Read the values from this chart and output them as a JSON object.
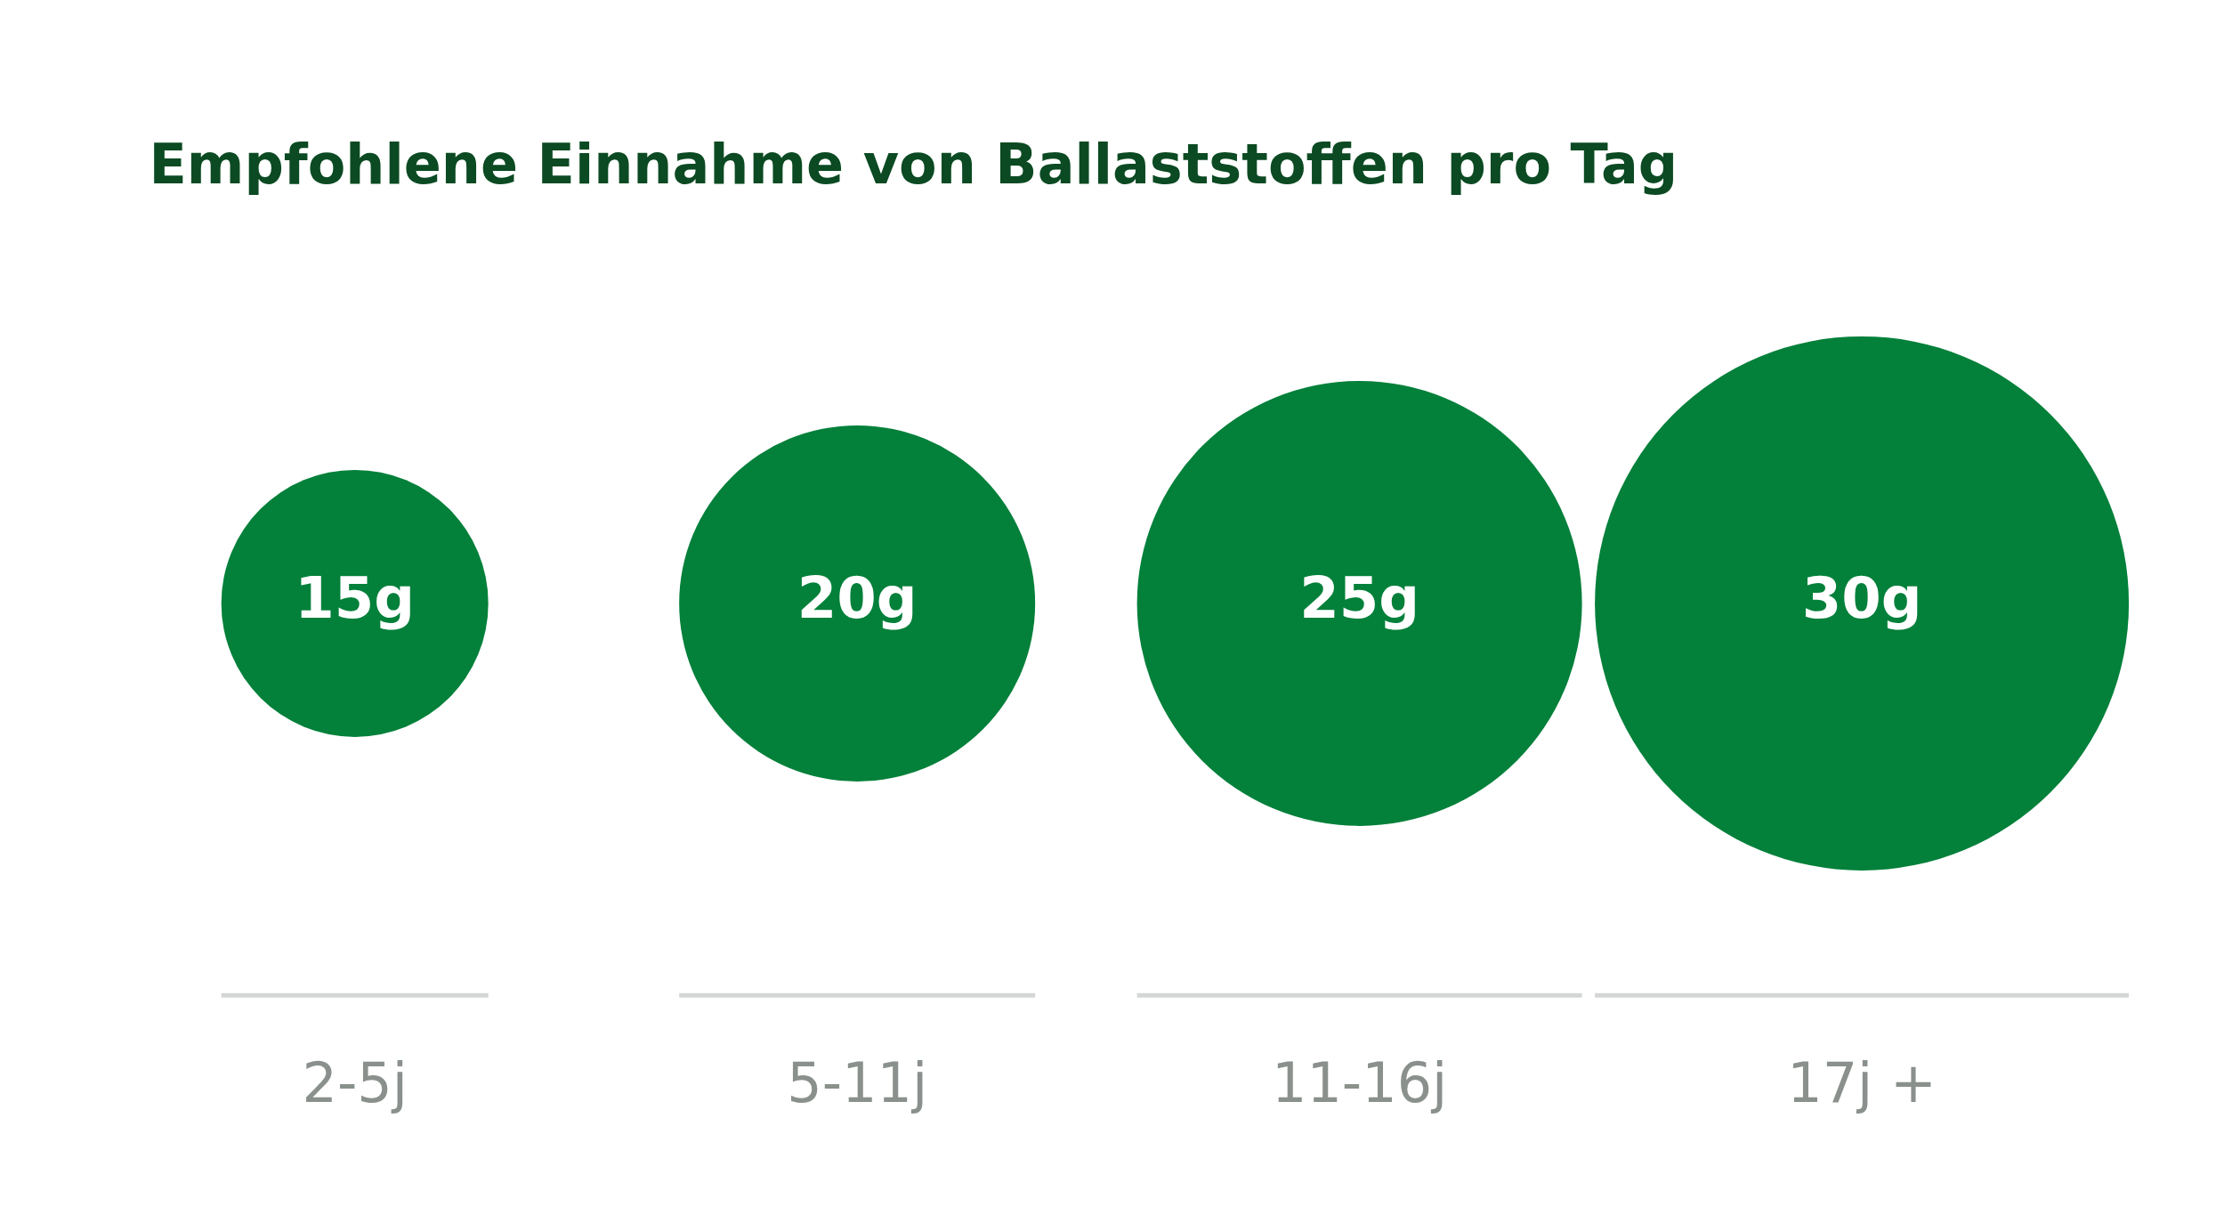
{
  "chart_data": {
    "type": "other",
    "title": "Empfohlene Einnahme von Ballaststoffen pro Tag",
    "categories": [
      "2-5j",
      "5-11j",
      "11-16j",
      "17j +"
    ],
    "values": [
      15,
      20,
      25,
      30
    ],
    "value_labels": [
      "15g",
      "20g",
      "25g",
      "30g"
    ],
    "color": "#03803a"
  }
}
